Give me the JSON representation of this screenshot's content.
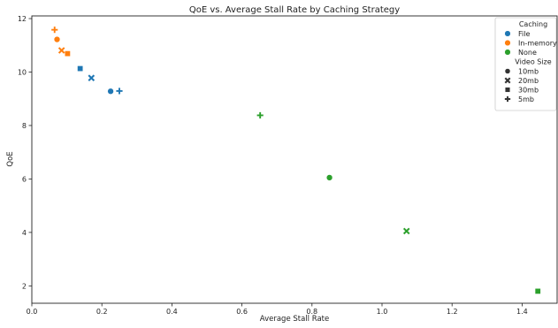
{
  "chart_data": {
    "type": "scatter",
    "title": "QoE vs. Average Stall Rate by Caching Strategy",
    "xlabel": "Average Stall Rate",
    "ylabel": "QoE",
    "xlim": [
      0.0,
      1.5
    ],
    "ylim": [
      1.35,
      12.1
    ],
    "xticks": [
      "0.0",
      "0.2",
      "0.4",
      "0.6",
      "0.8",
      "1.0",
      "1.2",
      "1.4"
    ],
    "xtick_values": [
      0.0,
      0.2,
      0.4,
      0.6,
      0.8,
      1.0,
      1.2,
      1.4
    ],
    "yticks": [
      "2",
      "4",
      "6",
      "8",
      "10",
      "12"
    ],
    "ytick_values": [
      2,
      4,
      6,
      8,
      10,
      12
    ],
    "grid": false,
    "legend_placement": "top-right",
    "legend": {
      "hue_title": "Caching",
      "hue_entries": [
        {
          "label": "File",
          "color": "#1f77b4"
        },
        {
          "label": "In-memory",
          "color": "#ff7f0e"
        },
        {
          "label": "None",
          "color": "#2ca02c"
        }
      ],
      "style_title": "Video Size",
      "style_entries": [
        {
          "label": "10mb",
          "marker": "circle"
        },
        {
          "label": "20mb",
          "marker": "x"
        },
        {
          "label": "30mb",
          "marker": "square"
        },
        {
          "label": "5mb",
          "marker": "plus"
        }
      ]
    },
    "points": [
      {
        "caching": "File",
        "size": "10mb",
        "x": 0.225,
        "y": 9.28
      },
      {
        "caching": "File",
        "size": "20mb",
        "x": 0.17,
        "y": 9.78
      },
      {
        "caching": "File",
        "size": "30mb",
        "x": 0.138,
        "y": 10.13
      },
      {
        "caching": "File",
        "size": "5mb",
        "x": 0.25,
        "y": 9.29
      },
      {
        "caching": "In-memory",
        "size": "10mb",
        "x": 0.072,
        "y": 11.22
      },
      {
        "caching": "In-memory",
        "size": "20mb",
        "x": 0.085,
        "y": 10.81
      },
      {
        "caching": "In-memory",
        "size": "30mb",
        "x": 0.102,
        "y": 10.69
      },
      {
        "caching": "In-memory",
        "size": "5mb",
        "x": 0.065,
        "y": 11.58
      },
      {
        "caching": "None",
        "size": "10mb",
        "x": 0.85,
        "y": 6.05
      },
      {
        "caching": "None",
        "size": "20mb",
        "x": 1.07,
        "y": 4.05
      },
      {
        "caching": "None",
        "size": "30mb",
        "x": 1.445,
        "y": 1.8
      },
      {
        "caching": "None",
        "size": "5mb",
        "x": 0.652,
        "y": 8.38
      }
    ]
  }
}
